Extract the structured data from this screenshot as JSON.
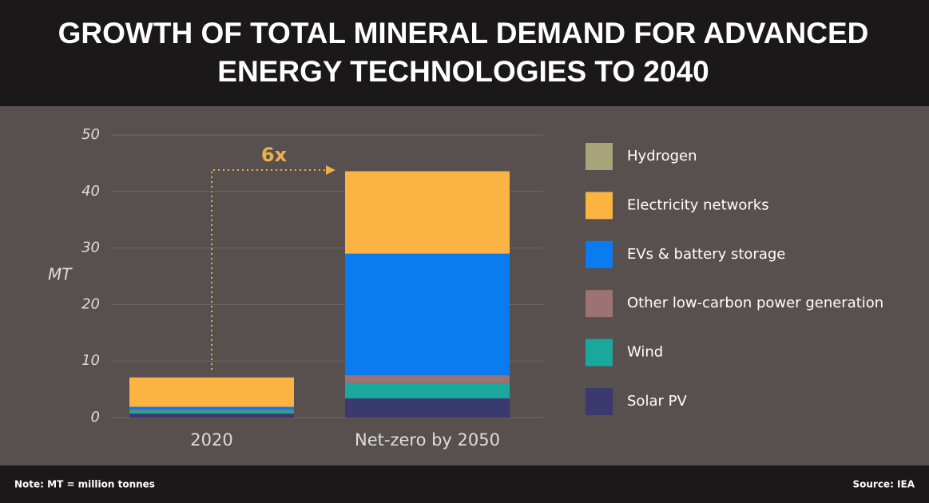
{
  "chart_data": {
    "type": "stacked_bar",
    "title": "GROWTH OF TOTAL MINERAL DEMAND FOR ADVANCED ENERGY TECHNOLOGIES TO 2040",
    "y_label": "MT",
    "annotation": "6x",
    "note": "Note: MT = million tonnes",
    "source": "Source: IEA",
    "categories": [
      "2020",
      "Net-zero by 2050"
    ],
    "series": [
      {
        "name": "Solar PV",
        "color": "#3b3a6e",
        "values": [
          0.7,
          3.4
        ]
      },
      {
        "name": "Wind",
        "color": "#1aa89c",
        "values": [
          0.5,
          2.7
        ]
      },
      {
        "name": "Other low-carbon power generation",
        "color": "#9c7272",
        "values": [
          0.2,
          1.4
        ]
      },
      {
        "name": "EVs & battery storage",
        "color": "#0a7cf0",
        "values": [
          0.5,
          21.5
        ]
      },
      {
        "name": "Electricity networks",
        "color": "#fbb442",
        "values": [
          5.2,
          14.5
        ]
      },
      {
        "name": "Hydrogen",
        "color": "#a8a47a",
        "values": [
          0,
          0.1
        ]
      }
    ],
    "ylim": [
      0,
      50
    ],
    "yticks": [
      0,
      10,
      20,
      30,
      40,
      50
    ],
    "grid": true
  }
}
